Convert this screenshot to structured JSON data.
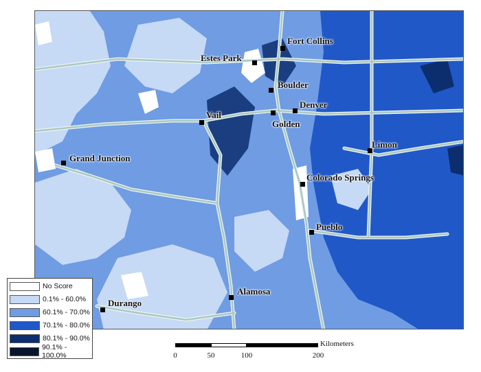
{
  "cities": [
    {
      "name": "Fort Collins"
    },
    {
      "name": "Estes Park"
    },
    {
      "name": "Boulder"
    },
    {
      "name": "Denver"
    },
    {
      "name": "Golden"
    },
    {
      "name": "Vail"
    },
    {
      "name": "Limon"
    },
    {
      "name": "Grand Junction"
    },
    {
      "name": "Colorado Springs"
    },
    {
      "name": "Pueblo"
    },
    {
      "name": "Alamosa"
    },
    {
      "name": "Durango"
    }
  ],
  "legend": {
    "items": [
      {
        "label": "No Score",
        "color": "#ffffff"
      },
      {
        "label": "0.1% - 60.0%",
        "color": "#c6d9f5"
      },
      {
        "label": "60.1% - 70.0%",
        "color": "#6f9ce3"
      },
      {
        "label": "70.1% - 80.0%",
        "color": "#2158c8"
      },
      {
        "label": "80.1% - 90.0%",
        "color": "#0d2e6e"
      },
      {
        "label": "90.1% - 100.0%",
        "color": "#08152c"
      }
    ]
  },
  "scalebar": {
    "unit": "Kilometers",
    "ticks": [
      "0",
      "50",
      "100",
      "200"
    ]
  },
  "colors": {
    "road": "#a8c8c2",
    "road_edge": "#eef4f2",
    "boundary": "#555555"
  }
}
